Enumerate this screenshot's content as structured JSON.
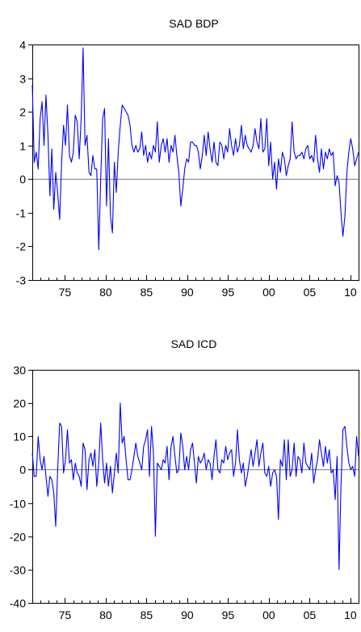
{
  "chart_data": [
    {
      "type": "line",
      "title": "SAD BDP",
      "xlabel": "",
      "ylabel": "",
      "xlim": [
        1971,
        2011
      ],
      "ylim": [
        -3,
        4
      ],
      "grid": false,
      "line_color": "#0000ff",
      "x_ticks": [
        {
          "value": 1975,
          "label": "75"
        },
        {
          "value": 1980,
          "label": "80"
        },
        {
          "value": 1985,
          "label": "85"
        },
        {
          "value": 1990,
          "label": "90"
        },
        {
          "value": 1995,
          "label": "95"
        },
        {
          "value": 2000,
          "label": "00"
        },
        {
          "value": 2005,
          "label": "05"
        },
        {
          "value": 2010,
          "label": "10"
        }
      ],
      "y_ticks": [
        {
          "value": 4,
          "label": "4"
        },
        {
          "value": 3,
          "label": "3"
        },
        {
          "value": 2,
          "label": "2"
        },
        {
          "value": 1,
          "label": "1"
        },
        {
          "value": 0,
          "label": "0"
        },
        {
          "value": -1,
          "label": "-1"
        },
        {
          "value": -2,
          "label": "-2"
        },
        {
          "value": -3,
          "label": "-3"
        }
      ],
      "series": [
        {
          "values": [
            2.8,
            0.5,
            0.8,
            0.3,
            1.8,
            2.3,
            1.0,
            2.5,
            1.3,
            -0.5,
            0.9,
            -0.9,
            0.2,
            -0.4,
            -1.2,
            0.5,
            1.6,
            1.0,
            2.2,
            0.7,
            0.5,
            0.8,
            1.9,
            1.7,
            0.6,
            1.8,
            3.9,
            1.0,
            1.3,
            0.2,
            0.1,
            0.7,
            0.3,
            0.3,
            -2.1,
            0.0,
            1.8,
            2.1,
            -0.8,
            1.2,
            -1.1,
            -1.6,
            0.5,
            -0.4,
            0.8,
            1.6,
            2.2,
            2.1,
            2.0,
            1.9,
            1.6,
            1.0,
            0.8,
            1.0,
            0.8,
            0.9,
            1.4,
            0.7,
            1.0,
            0.5,
            0.8,
            0.6,
            1.0,
            0.8,
            1.7,
            0.5,
            1.0,
            1.2,
            0.8,
            1.2,
            0.5,
            1.0,
            0.8,
            1.3,
            0.7,
            0.2,
            -0.8,
            -0.3,
            0.3,
            0.6,
            0.5,
            1.1,
            1.1,
            1.0,
            1.0,
            0.8,
            0.3,
            0.7,
            1.3,
            0.7,
            1.4,
            0.9,
            0.5,
            1.1,
            0.5,
            0.4,
            1.1,
            1.0,
            0.6,
            1.0,
            0.8,
            1.5,
            1.0,
            0.7,
            1.2,
            0.8,
            1.0,
            1.6,
            0.9,
            1.3,
            1.0,
            0.9,
            0.8,
            1.0,
            1.5,
            1.1,
            0.9,
            1.8,
            0.8,
            0.9,
            1.8,
            0.4,
            1.1,
            0.0,
            0.5,
            -0.3,
            0.6,
            0.2,
            0.8,
            0.6,
            0.1,
            0.4,
            0.6,
            1.7,
            0.8,
            0.6,
            0.7,
            0.7,
            0.8,
            0.6,
            0.9,
            1.0,
            0.6,
            0.7,
            0.5,
            1.3,
            0.6,
            0.2,
            0.9,
            0.3,
            0.8,
            0.6,
            0.9,
            0.7,
            0.8,
            -0.2,
            0.1,
            -0.1,
            -1.0,
            -1.7,
            -1.1,
            0.2,
            0.8,
            1.2,
            0.9,
            0.4,
            0.6,
            0.8
          ]
        }
      ]
    },
    {
      "type": "line",
      "title": "SAD ICD",
      "xlabel": "",
      "ylabel": "",
      "xlim": [
        1971,
        2011
      ],
      "ylim": [
        -40,
        30
      ],
      "grid": false,
      "line_color": "#0000ff",
      "x_ticks": [
        {
          "value": 1975,
          "label": "75"
        },
        {
          "value": 1980,
          "label": "80"
        },
        {
          "value": 1985,
          "label": "85"
        },
        {
          "value": 1990,
          "label": "90"
        },
        {
          "value": 1995,
          "label": "95"
        },
        {
          "value": 2000,
          "label": "00"
        },
        {
          "value": 2005,
          "label": "05"
        },
        {
          "value": 2010,
          "label": "10"
        }
      ],
      "y_ticks": [
        {
          "value": 30,
          "label": "30"
        },
        {
          "value": 20,
          "label": "20"
        },
        {
          "value": 10,
          "label": "10"
        },
        {
          "value": 0,
          "label": "0"
        },
        {
          "value": -10,
          "label": "-10"
        },
        {
          "value": -20,
          "label": "-20"
        },
        {
          "value": -30,
          "label": "-30"
        },
        {
          "value": -40,
          "label": "-40"
        }
      ],
      "series": [
        {
          "values": [
            5,
            -2,
            -2,
            10,
            3,
            0,
            4,
            -2,
            -8,
            -2,
            -3,
            -7,
            -17,
            0,
            14,
            13,
            -1,
            3,
            12,
            2,
            3,
            -3,
            2,
            -1,
            -2,
            -5,
            8,
            6,
            -6,
            3,
            5,
            1,
            6,
            -5,
            2,
            14,
            3,
            -4,
            2,
            -5,
            1,
            -7,
            -1,
            5,
            -1,
            20,
            8,
            10,
            3,
            -3,
            -3,
            0,
            4,
            8,
            4,
            2,
            0,
            7,
            9,
            12,
            -2,
            13,
            5,
            -20,
            2,
            1,
            0,
            3,
            2,
            7,
            -3,
            7,
            10,
            4,
            -1,
            0,
            11,
            7,
            0,
            4,
            0,
            6,
            8,
            2,
            -4,
            4,
            2,
            3,
            5,
            0,
            3,
            2,
            -3,
            4,
            9,
            0,
            -1,
            3,
            2,
            7,
            3,
            5,
            6,
            -2,
            2,
            12,
            3,
            -1,
            2,
            -5,
            -2,
            2,
            6,
            1,
            5,
            9,
            1,
            5,
            8,
            -1,
            -2,
            1,
            -5,
            -1,
            0,
            -2,
            -15,
            3,
            1,
            9,
            -3,
            9,
            -2,
            0,
            8,
            -2,
            4,
            3,
            -1,
            8,
            2,
            1,
            0,
            5,
            -4,
            0,
            3,
            9,
            5,
            1,
            7,
            2,
            6,
            -1,
            0,
            -9,
            4,
            -30,
            -5,
            12,
            13,
            7,
            2,
            0,
            1,
            -2,
            10,
            4
          ]
        }
      ]
    }
  ]
}
